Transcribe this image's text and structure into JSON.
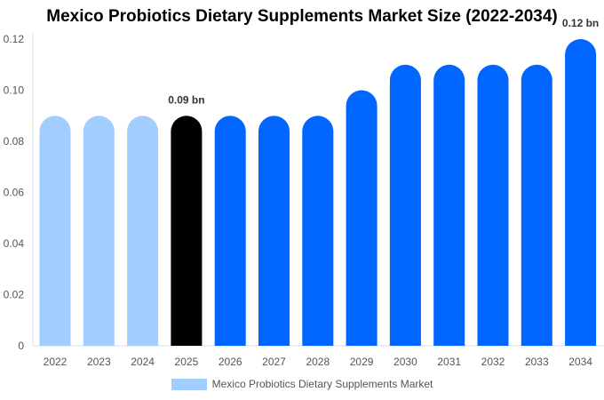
{
  "chart_data": {
    "type": "bar",
    "title": "Mexico Probiotics Dietary Supplements Market Size (2022-2034)",
    "categories": [
      "2022",
      "2023",
      "2024",
      "2025",
      "2026",
      "2027",
      "2028",
      "2029",
      "2030",
      "2031",
      "2032",
      "2033",
      "2034"
    ],
    "series": [
      {
        "name": "Mexico Probiotics Dietary Supplements Market",
        "values": [
          0.09,
          0.09,
          0.09,
          0.09,
          0.09,
          0.09,
          0.09,
          0.1,
          0.11,
          0.11,
          0.11,
          0.11,
          0.12
        ]
      }
    ],
    "ylim": [
      0,
      0.12
    ],
    "yticks": [
      "0",
      "0.02",
      "0.04",
      "0.06",
      "0.08",
      "0.10",
      "0.12"
    ],
    "data_labels": [
      {
        "category": "2025",
        "text": "0.09 bn"
      },
      {
        "category": "2034",
        "text": "0.12 bn"
      }
    ],
    "legend_position": "bottom",
    "grid": false,
    "colors": {
      "historical": "#a2cdff",
      "current": "#000000",
      "forecast": "#0066ff"
    }
  }
}
